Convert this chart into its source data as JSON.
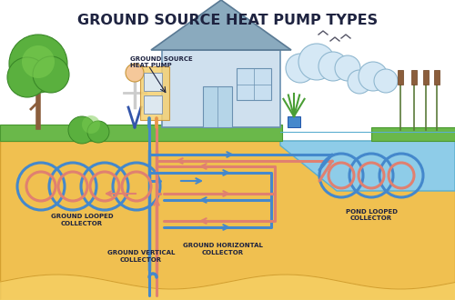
{
  "title": "GROUND SOURCE HEAT PUMP TYPES",
  "title_fontsize": 11.5,
  "title_color": "#1e2340",
  "bg_color": "#ffffff",
  "ground_color": "#f0c050",
  "ground_edge": "#d4a030",
  "grass_color": "#6ab84a",
  "grass_edge": "#4a9830",
  "water_color": "#8ecce8",
  "water_edge": "#5aaed0",
  "house_wall": "#cfe0ee",
  "house_wall_edge": "#6a90b0",
  "house_roof": "#8aaabe",
  "house_roof_edge": "#5a7a94",
  "pipe_blue": "#4488cc",
  "pipe_red": "#e08070",
  "pipe_orange": "#e8944a",
  "label_color": "#1e2340",
  "label_fontsize": 5.0,
  "equip_bg": "#f5d070",
  "tree_trunk": "#8B5E3C",
  "tree_green": "#5ab03e",
  "tree_green2": "#3a8828",
  "labels": {
    "ground_source_heat_pump": "GROUND SOURCE\nHEAT PUMP",
    "ground_looped": "GROUND LOOPED\nCOLLECTOR",
    "ground_vertical": "GROUND VERTICAL\nCOLLECTOR",
    "ground_horizontal": "GROUND HORIZONTAL\nCOLLECTOR",
    "pond_looped": "POND LOOPED\nCOLLECTOR"
  }
}
